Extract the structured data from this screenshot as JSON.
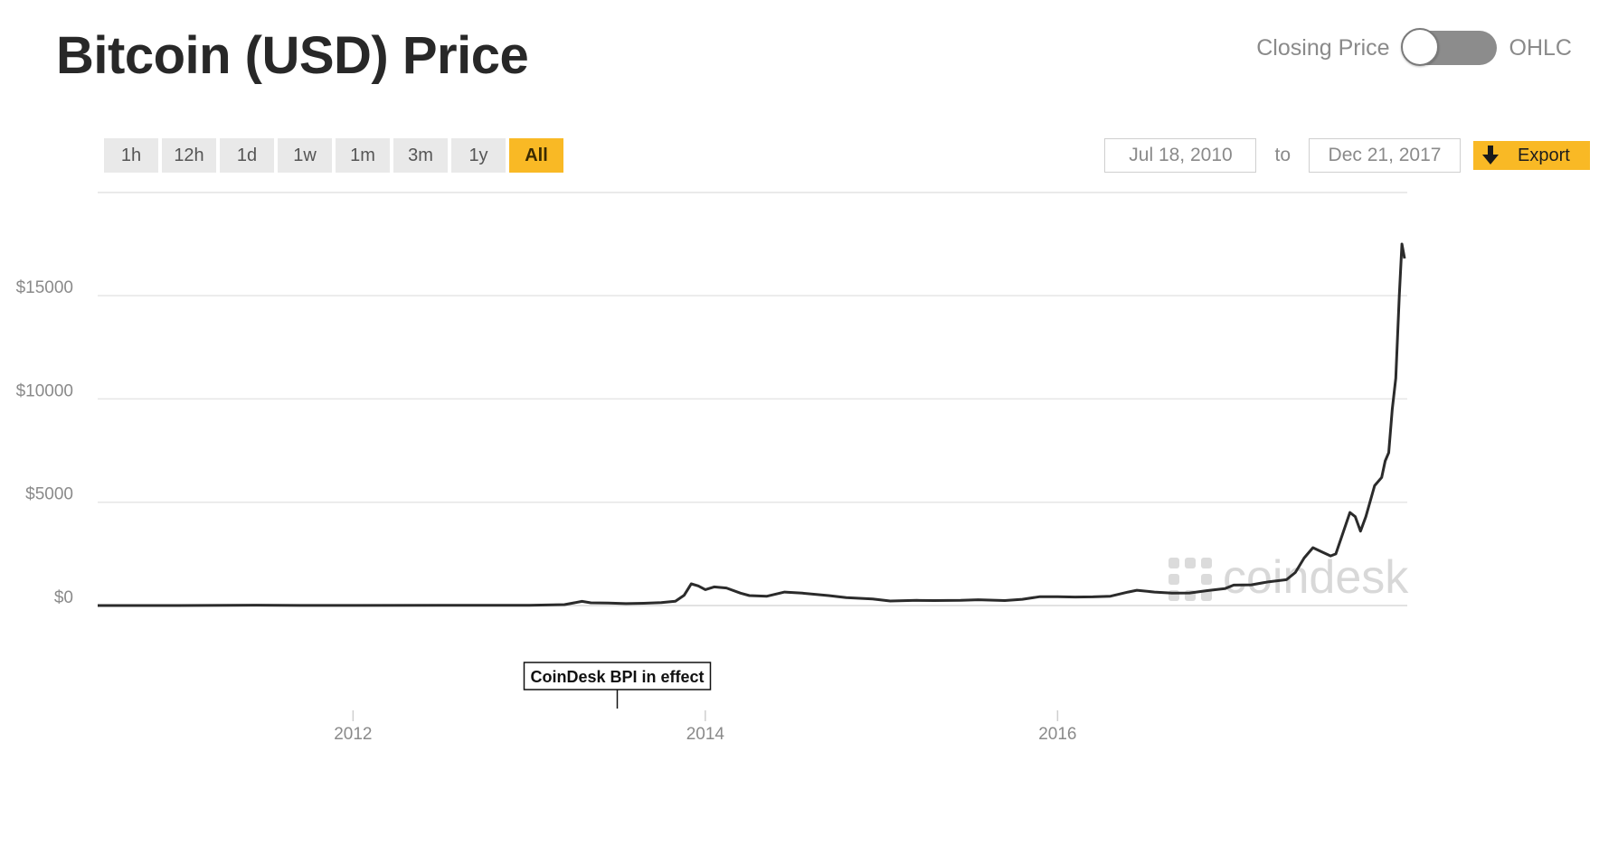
{
  "header": {
    "title": "Bitcoin (USD) Price",
    "toggle_left_label": "Closing Price",
    "toggle_right_label": "OHLC",
    "toggle_state": "Closing Price"
  },
  "range_buttons": [
    {
      "label": "1h",
      "active": false
    },
    {
      "label": "12h",
      "active": false
    },
    {
      "label": "1d",
      "active": false
    },
    {
      "label": "1w",
      "active": false
    },
    {
      "label": "1m",
      "active": false
    },
    {
      "label": "3m",
      "active": false
    },
    {
      "label": "1y",
      "active": false
    },
    {
      "label": "All",
      "active": true
    }
  ],
  "date_range": {
    "from": "Jul 18, 2010",
    "to_label": "to",
    "to": "Dec 21, 2017"
  },
  "export": {
    "label": "Export",
    "icon": "download-arrow-icon"
  },
  "watermark": {
    "text": "coindesk",
    "icon": "coindesk-logo-icon"
  },
  "colors": {
    "accent": "#f9b925",
    "line": "#2b2b2b",
    "grid": "#e4e4e4",
    "axis_text": "#8a8a8a"
  },
  "chart_data": {
    "type": "line",
    "title": "Bitcoin (USD) Price",
    "xlabel": "",
    "ylabel": "",
    "grid": true,
    "legend": false,
    "xlim": [
      2010.55,
      2017.97
    ],
    "ylim": [
      0,
      17500
    ],
    "y_ticks": [
      {
        "value": 0,
        "label": "$0"
      },
      {
        "value": 5000,
        "label": "$5000"
      },
      {
        "value": 10000,
        "label": "$10000"
      },
      {
        "value": 15000,
        "label": "$15000"
      }
    ],
    "x_ticks": [
      {
        "value": 2012,
        "label": "2012"
      },
      {
        "value": 2014,
        "label": "2014"
      },
      {
        "value": 2016,
        "label": "2016"
      }
    ],
    "annotations": [
      {
        "x": 2013.5,
        "text": "CoinDesk BPI in effect"
      }
    ],
    "series": [
      {
        "points": [
          [
            2010.55,
            0.1
          ],
          [
            2011.0,
            0.3
          ],
          [
            2011.45,
            18
          ],
          [
            2011.7,
            5
          ],
          [
            2012.0,
            5
          ],
          [
            2012.5,
            7
          ],
          [
            2013.0,
            13
          ],
          [
            2013.2,
            45
          ],
          [
            2013.3,
            200
          ],
          [
            2013.35,
            130
          ],
          [
            2013.45,
            120
          ],
          [
            2013.55,
            90
          ],
          [
            2013.65,
            110
          ],
          [
            2013.75,
            140
          ],
          [
            2013.83,
            210
          ],
          [
            2013.88,
            500
          ],
          [
            2013.92,
            1050
          ],
          [
            2013.96,
            950
          ],
          [
            2014.0,
            770
          ],
          [
            2014.05,
            900
          ],
          [
            2014.12,
            850
          ],
          [
            2014.2,
            600
          ],
          [
            2014.25,
            480
          ],
          [
            2014.35,
            450
          ],
          [
            2014.45,
            650
          ],
          [
            2014.55,
            600
          ],
          [
            2014.7,
            480
          ],
          [
            2014.8,
            380
          ],
          [
            2014.95,
            320
          ],
          [
            2015.05,
            220
          ],
          [
            2015.2,
            250
          ],
          [
            2015.3,
            240
          ],
          [
            2015.45,
            250
          ],
          [
            2015.55,
            280
          ],
          [
            2015.7,
            240
          ],
          [
            2015.8,
            300
          ],
          [
            2015.9,
            430
          ],
          [
            2016.0,
            430
          ],
          [
            2016.1,
            410
          ],
          [
            2016.2,
            420
          ],
          [
            2016.3,
            450
          ],
          [
            2016.4,
            650
          ],
          [
            2016.45,
            740
          ],
          [
            2016.55,
            650
          ],
          [
            2016.65,
            600
          ],
          [
            2016.75,
            610
          ],
          [
            2016.85,
            720
          ],
          [
            2016.95,
            820
          ],
          [
            2017.0,
            990
          ],
          [
            2017.1,
            1000
          ],
          [
            2017.2,
            1150
          ],
          [
            2017.3,
            1250
          ],
          [
            2017.35,
            1600
          ],
          [
            2017.4,
            2300
          ],
          [
            2017.45,
            2800
          ],
          [
            2017.5,
            2600
          ],
          [
            2017.55,
            2400
          ],
          [
            2017.58,
            2500
          ],
          [
            2017.62,
            3500
          ],
          [
            2017.66,
            4500
          ],
          [
            2017.69,
            4300
          ],
          [
            2017.72,
            3600
          ],
          [
            2017.75,
            4300
          ],
          [
            2017.8,
            5800
          ],
          [
            2017.84,
            6200
          ],
          [
            2017.86,
            7000
          ],
          [
            2017.88,
            7400
          ],
          [
            2017.9,
            9500
          ],
          [
            2017.92,
            11000
          ],
          [
            2017.94,
            15000
          ],
          [
            2017.955,
            17500
          ],
          [
            2017.97,
            16800
          ]
        ]
      }
    ]
  }
}
